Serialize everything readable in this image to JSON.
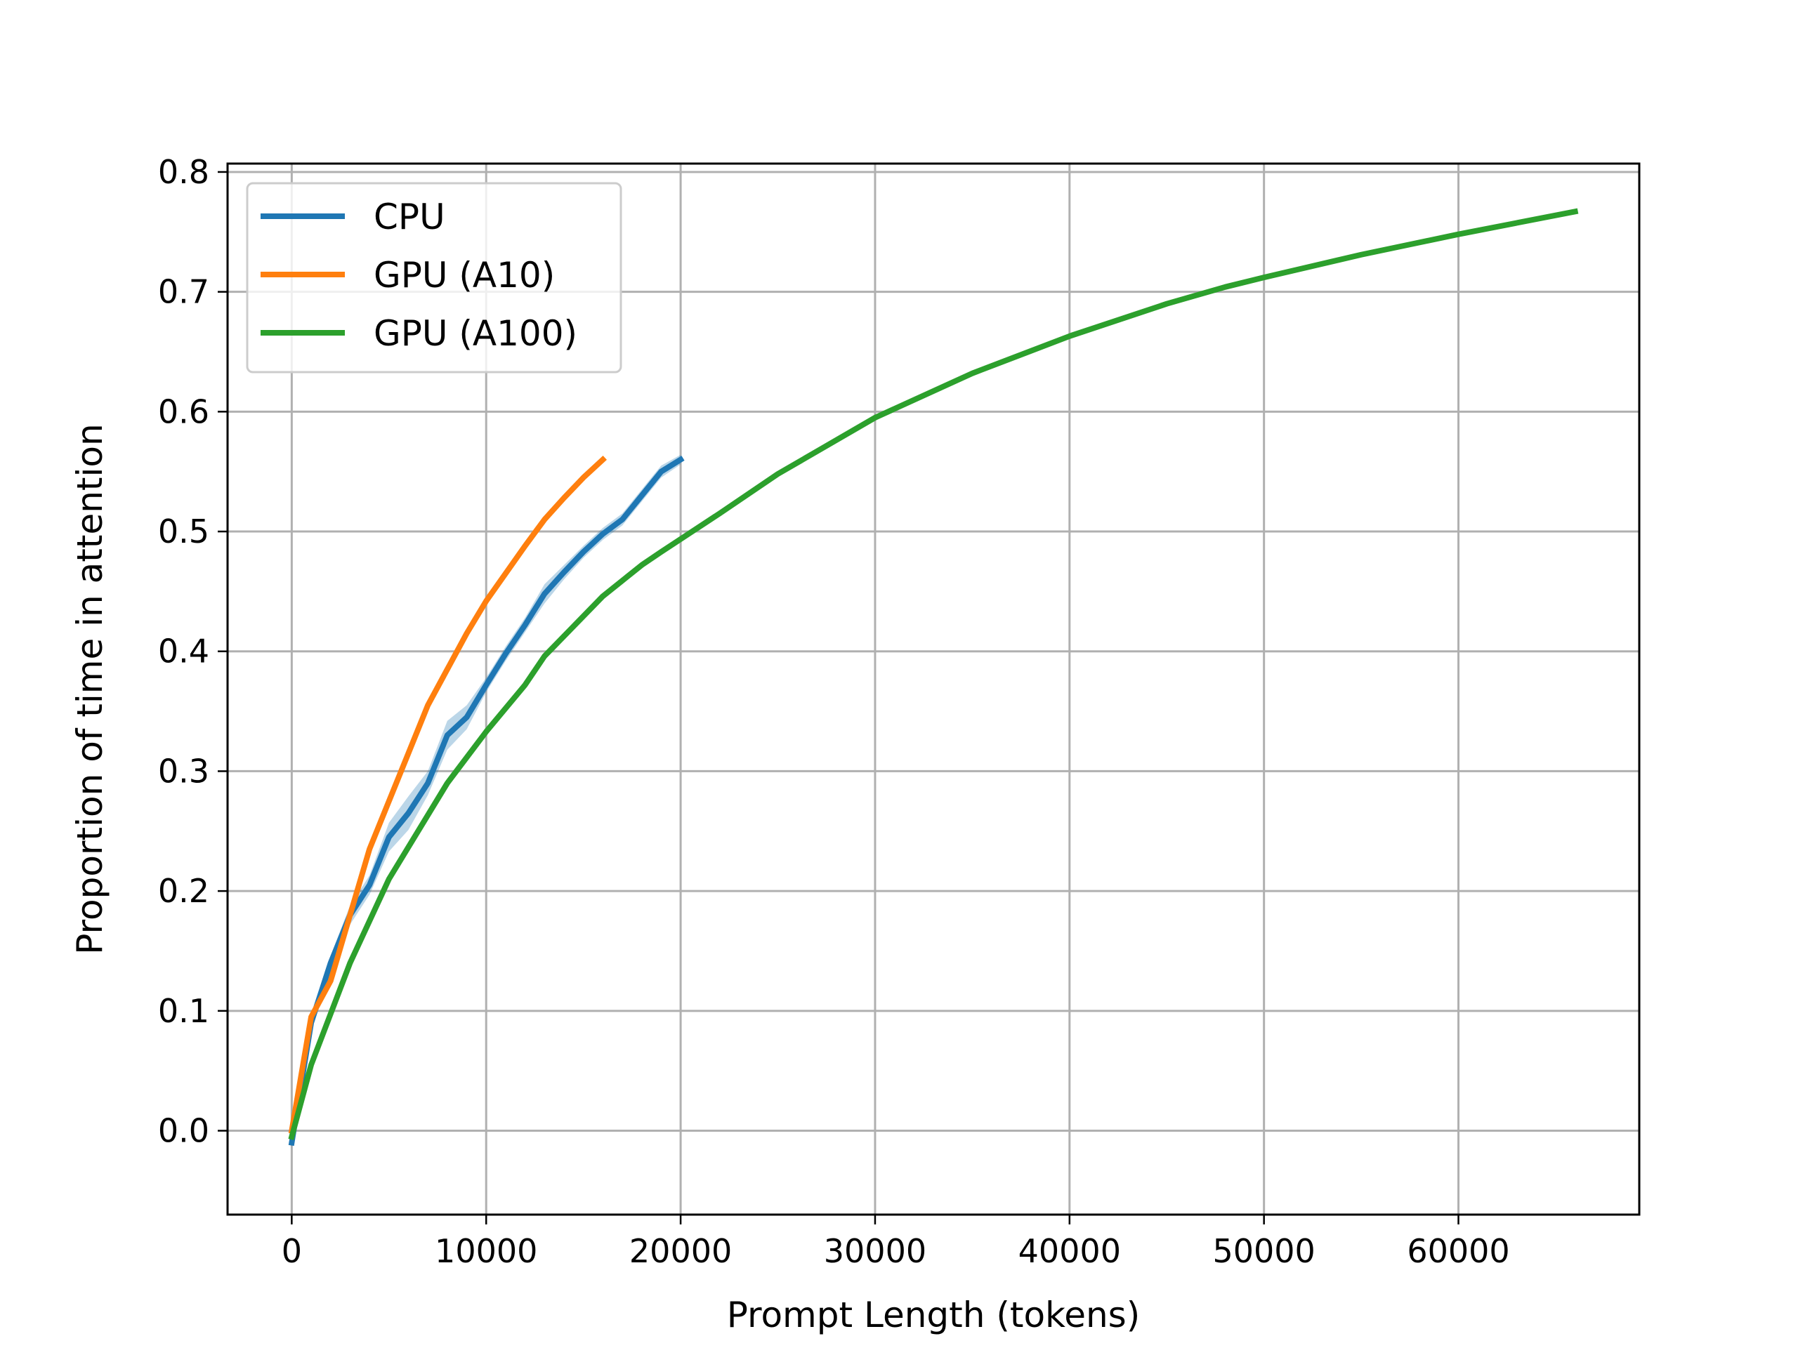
{
  "chart_data": {
    "type": "line",
    "title": "",
    "xlabel": "Prompt Length (tokens)",
    "ylabel": "Proportion of time in attention",
    "xlim": [
      -3300,
      69300
    ],
    "ylim": [
      -0.07,
      0.807
    ],
    "xticks": [
      0,
      10000,
      20000,
      30000,
      40000,
      50000,
      60000
    ],
    "yticks": [
      0.0,
      0.1,
      0.2,
      0.3,
      0.4,
      0.5,
      0.6,
      0.7,
      0.8
    ],
    "grid": true,
    "legend_position": "upper left",
    "series": [
      {
        "name": "CPU",
        "color": "#1f77b4",
        "x": [
          0,
          1000,
          2000,
          3000,
          4000,
          5000,
          6000,
          7000,
          8000,
          9000,
          10000,
          11000,
          12000,
          13000,
          14000,
          15000,
          16000,
          17000,
          18000,
          19000,
          20000
        ],
        "y": [
          -0.01,
          0.09,
          0.14,
          0.18,
          0.205,
          0.245,
          0.265,
          0.29,
          0.33,
          0.345,
          0.372,
          0.398,
          0.422,
          0.448,
          0.466,
          0.483,
          0.498,
          0.51,
          0.53,
          0.55,
          0.56
        ],
        "band": [
          0.005,
          0.005,
          0.006,
          0.008,
          0.008,
          0.012,
          0.014,
          0.01,
          0.012,
          0.01,
          0.006,
          0.006,
          0.006,
          0.008,
          0.006,
          0.005,
          0.005,
          0.005,
          0.005,
          0.005,
          0.004
        ]
      },
      {
        "name": "GPU (A10)",
        "color": "#ff7f0e",
        "x": [
          0,
          1000,
          2000,
          3000,
          4000,
          5000,
          6000,
          7000,
          8000,
          9000,
          10000,
          11000,
          12000,
          13000,
          14000,
          15000,
          16000
        ],
        "y": [
          0.0,
          0.095,
          0.125,
          0.18,
          0.235,
          0.275,
          0.315,
          0.355,
          0.385,
          0.415,
          0.442,
          0.465,
          0.488,
          0.51,
          0.528,
          0.545,
          0.56
        ]
      },
      {
        "name": "GPU (A100)",
        "color": "#2ca02c",
        "x": [
          0,
          1000,
          3000,
          5000,
          8000,
          10000,
          12000,
          13000,
          16000,
          18000,
          19000,
          22000,
          25000,
          30000,
          35000,
          40000,
          45000,
          48000,
          50000,
          55000,
          60000,
          66000
        ],
        "y": [
          -0.005,
          0.055,
          0.14,
          0.21,
          0.29,
          0.333,
          0.372,
          0.396,
          0.446,
          0.472,
          0.483,
          0.515,
          0.548,
          0.595,
          0.632,
          0.663,
          0.69,
          0.704,
          0.712,
          0.731,
          0.748,
          0.767
        ]
      }
    ]
  }
}
